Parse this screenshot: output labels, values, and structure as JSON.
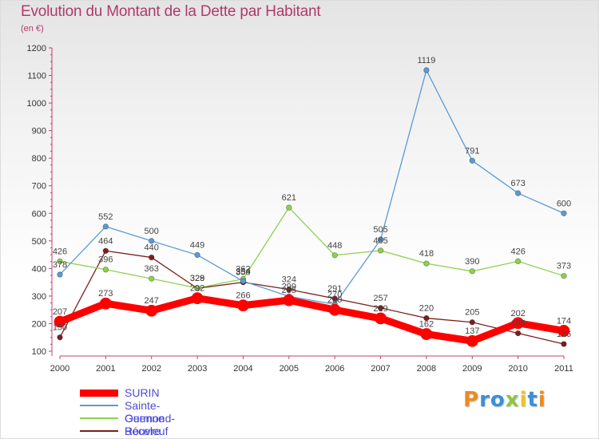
{
  "header": {
    "title": "Evolution du Montant de la Dette par Habitant",
    "unit": "(en €)"
  },
  "logo": {
    "text": "Proxiti"
  },
  "colors": {
    "title": "#b03a6a",
    "grid": "#e0e0e0",
    "legend_text": "#4b4bd8"
  },
  "chart_data": {
    "type": "line",
    "title": "Evolution du Montant de la Dette par Habitant",
    "subtitle": "(en €)",
    "xlabel": "",
    "ylabel": "",
    "x": [
      "2000",
      "2001",
      "2002",
      "2003",
      "2004",
      "2005",
      "2006",
      "2007",
      "2008",
      "2009",
      "2010",
      "2011"
    ],
    "ylim": [
      100,
      1200
    ],
    "yticks": [
      100,
      200,
      300,
      400,
      500,
      600,
      700,
      800,
      900,
      1000,
      1100,
      1200
    ],
    "grid": false,
    "legend_position": "bottom-left",
    "series": [
      {
        "name": "SURIN",
        "color": "#ff0000",
        "values": [
          207,
          273,
          247,
          292,
          266,
          285,
          250,
          219,
          162,
          137,
          202,
          174
        ]
      },
      {
        "name": "Sainte-Ouenne",
        "color": "#5b9bd5",
        "values": [
          378,
          552,
          500,
          449,
          354,
          299,
          270,
          505,
          1119,
          791,
          673,
          600
        ]
      },
      {
        "name": "Germond-Rouvre",
        "color": "#8fd14f",
        "values": [
          426,
          396,
          363,
          329,
          362,
          621,
          448,
          465,
          418,
          390,
          426,
          373
        ]
      },
      {
        "name": "Béceleuf",
        "color": "#7a1f1f",
        "values": [
          150,
          464,
          440,
          328,
          350,
          324,
          291,
          257,
          220,
          205,
          165,
          126
        ]
      }
    ]
  }
}
